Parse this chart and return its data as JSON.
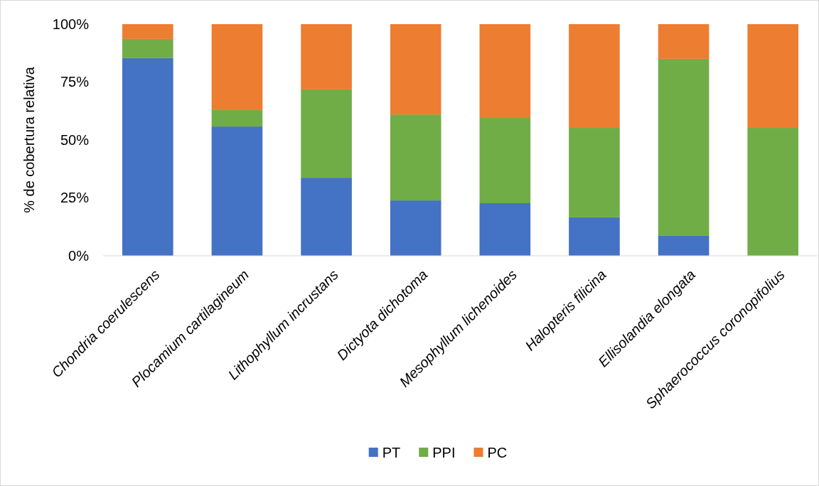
{
  "chart_data": {
    "type": "bar",
    "stacked": true,
    "ylabel": "% de cobertura relativa",
    "categories": [
      "Chondria coerulescens",
      "Plocamium cartilagineum",
      "Lithophyllum incrustans",
      "Dictyota dichotoma",
      "Mesophyllum lichenoides",
      "Halopteris filicina",
      "Ellisolandia elongata",
      "Sphaerococcus coronopifolius"
    ],
    "series": [
      {
        "name": "PT",
        "color": "#4472c4",
        "values": [
          85.3,
          55.8,
          33.7,
          23.9,
          22.7,
          16.6,
          8.6,
          0
        ]
      },
      {
        "name": "PPI",
        "color": "#70ad47",
        "values": [
          8.3,
          7.1,
          38.1,
          37.1,
          36.8,
          38.6,
          76.4,
          55.2
        ]
      },
      {
        "name": "PC",
        "color": "#ed7d31",
        "values": [
          6.4,
          37.1,
          28.2,
          39.0,
          40.5,
          44.8,
          15.0,
          44.8
        ]
      }
    ],
    "ylim": [
      0,
      100
    ],
    "yticks": [
      {
        "value": 0,
        "label": "0%"
      },
      {
        "value": 25,
        "label": "25%"
      },
      {
        "value": 50,
        "label": "50%"
      },
      {
        "value": 75,
        "label": "75%"
      },
      {
        "value": 100,
        "label": "100%"
      }
    ],
    "grid": false,
    "legend": "bottom"
  }
}
